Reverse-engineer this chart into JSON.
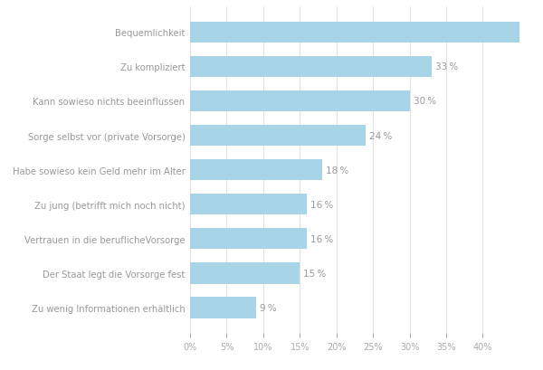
{
  "categories": [
    "Bequemlichkeit",
    "Zu kompliziert",
    "Kann sowieso nichts beeinflussen",
    "Sorge selbst vor (private Vorsorge)",
    "Habe sowieso kein Geld mehr im Alter",
    "Zu jung (betrifft mich noch nicht)",
    "Vertrauen in die beruflicheVorsorge",
    "Der Staat legt die Vorsorge fest",
    "Zu wenig Informationen erhältlich"
  ],
  "values": [
    45,
    33,
    30,
    24,
    18,
    16,
    16,
    15,
    9
  ],
  "show_label": [
    false,
    true,
    true,
    true,
    true,
    true,
    true,
    true,
    true
  ],
  "bar_color": "#a8d4e8",
  "text_color": "#999999",
  "label_color": "#aaaaaa",
  "background_color": "#ffffff",
  "xlim": [
    0,
    46
  ],
  "xtick_values": [
    0,
    5,
    10,
    15,
    20,
    25,
    30,
    35,
    40
  ],
  "bar_height": 0.62,
  "figsize": [
    6.0,
    4.1
  ],
  "dpi": 100,
  "fontsize_labels": 7.2,
  "fontsize_ticks": 7.0,
  "fontsize_values": 7.5
}
